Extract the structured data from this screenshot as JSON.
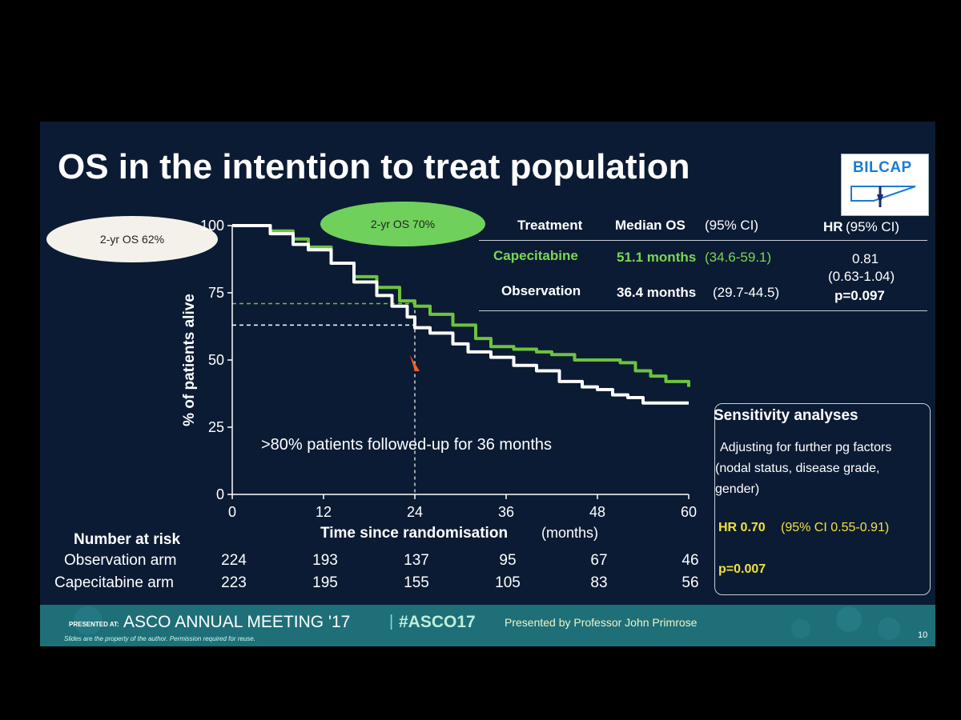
{
  "slide_title": "OS in the intention to treat population",
  "logo_text": "BILCAP",
  "callouts": {
    "observation": "2-yr OS 62%",
    "capecitabine": "2-yr OS 70%"
  },
  "results_table": {
    "headers": {
      "treatment": "Treatment",
      "median_os": "Median OS",
      "median_os_ci": "(95% CI)",
      "hr": "HR",
      "hr_ci": "(95% CI)"
    },
    "rows": [
      {
        "treatment": "Capecitabine",
        "median": "51.1 months",
        "ci": "(34.6-59.1)"
      },
      {
        "treatment": "Observation",
        "median": "36.4 months",
        "ci": "(29.7-44.5)"
      }
    ],
    "hr_value": "0.81",
    "hr_ci_value": "(0.63-1.04)",
    "p_value": "p=0.097"
  },
  "sensitivity": {
    "title": "Sensitivity analyses",
    "line1": "Adjusting for further pg factors",
    "line2": "(nodal status, disease grade,",
    "line3": "gender)",
    "hr_label": "HR 0.70",
    "hr_ci": "(95% CI 0.55-0.91)",
    "p_value": "p=0.007"
  },
  "annotation": ">80% patients followed-up for 36 months",
  "number_at_risk": {
    "title": "Number at risk",
    "rows": [
      {
        "label": "Observation arm",
        "values": [
          "224",
          "193",
          "137",
          "95",
          "67",
          "46"
        ]
      },
      {
        "label": "Capecitabine arm",
        "values": [
          "223",
          "195",
          "155",
          "105",
          "83",
          "56"
        ]
      }
    ]
  },
  "footer": {
    "presented_at": "PRESENTED AT:",
    "meeting": "ASCO ANNUAL MEETING '17",
    "hashtag": "#ASCO17",
    "presenter": "Presented by Professor John Primrose",
    "disclaimer": "Slides are the property of the author. Permission required for reuse.",
    "slide_number": "10"
  },
  "colors": {
    "capecitabine": "#6cc43c",
    "observation": "#ffffff",
    "background": "#0b1b34",
    "footer": "#1e6f78",
    "marker": "#ff5a1f"
  },
  "chart_data": {
    "type": "line",
    "xlabel": "Time since randomisation",
    "xlabel_unit": "(months)",
    "ylabel": "% of patients alive",
    "xlim": [
      0,
      60
    ],
    "ylim": [
      0,
      100
    ],
    "x_ticks": [
      0,
      12,
      24,
      36,
      48,
      60
    ],
    "y_ticks": [
      0,
      25,
      50,
      75,
      100
    ],
    "series": [
      {
        "name": "Capecitabine",
        "x": [
          0,
          3,
          5,
          8,
          10,
          13,
          16,
          19,
          22,
          24,
          26,
          29,
          32,
          34,
          37,
          40,
          42,
          45,
          48,
          51,
          53,
          55,
          57,
          60
        ],
        "y": [
          100,
          100,
          98,
          95,
          92,
          86,
          81,
          77,
          72,
          70,
          67,
          63,
          58,
          55,
          54,
          53,
          52,
          50,
          50,
          49,
          46,
          44,
          42,
          40
        ]
      },
      {
        "name": "Observation",
        "x": [
          0,
          3,
          5,
          8,
          10,
          13,
          16,
          19,
          21,
          23,
          24,
          26,
          29,
          31,
          34,
          37,
          40,
          43,
          46,
          48,
          50,
          52,
          54,
          57,
          60
        ],
        "y": [
          100,
          100,
          97,
          93,
          91,
          86,
          79,
          74,
          70,
          66,
          62,
          60,
          56,
          53,
          51,
          48,
          46,
          42,
          40,
          39,
          37,
          36,
          34,
          34,
          34
        ]
      }
    ],
    "reference_lines": [
      {
        "x": 24,
        "y": 71
      },
      {
        "x": 24,
        "y": 63
      }
    ]
  }
}
